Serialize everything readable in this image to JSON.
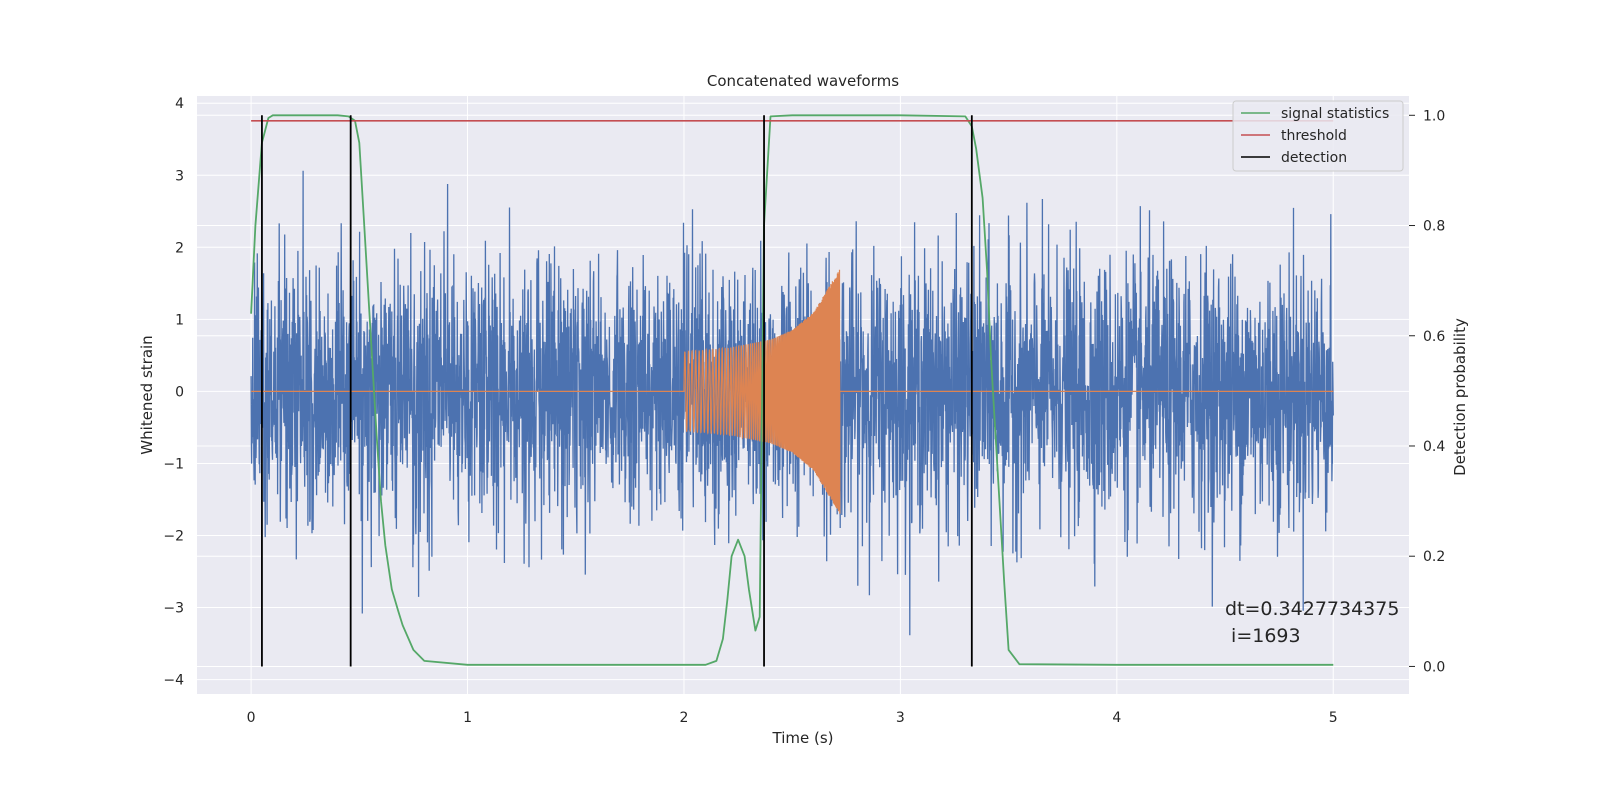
{
  "chart_data": {
    "type": "line",
    "title": "Concatenated waveforms",
    "xlabel": "Time (s)",
    "ylabel": "Whitened strain",
    "y2label": "Detection probability",
    "xlim": [
      -0.25,
      5.35
    ],
    "ylim": [
      -4.2,
      4.1
    ],
    "y2lim": [
      -0.05,
      1.035
    ],
    "xticks": [
      0,
      1,
      2,
      3,
      4,
      5
    ],
    "xtick_labels": [
      "0",
      "1",
      "2",
      "3",
      "4",
      "5"
    ],
    "yticks": [
      -4,
      -3,
      -2,
      -1,
      0,
      1,
      2,
      3,
      4
    ],
    "ytick_labels": [
      "−4",
      "−3",
      "−2",
      "−1",
      "0",
      "1",
      "2",
      "3",
      "4"
    ],
    "y2ticks": [
      0.0,
      0.2,
      0.4,
      0.6,
      0.8,
      1.0
    ],
    "y2tick_labels": [
      "0.0",
      "0.2",
      "0.4",
      "0.6",
      "0.8",
      "1.0"
    ],
    "grid": true,
    "legend_position": "top-right",
    "legend": [
      {
        "label": "signal statistics",
        "color": "#55a868"
      },
      {
        "label": "threshold",
        "color": "#c44e52"
      },
      {
        "label": "detection",
        "color": "#000000"
      }
    ],
    "series": [
      {
        "kind": "whitened-strain",
        "color": "#4c72b0",
        "x_range": [
          0,
          5
        ],
        "amplitude_range": [
          -3.6,
          3.7
        ]
      },
      {
        "kind": "injected-waveform",
        "color": "#dd8452",
        "x_range": [
          2.0,
          2.72
        ],
        "envelope": [
          [
            2.0,
            0.55
          ],
          [
            2.2,
            0.6
          ],
          [
            2.4,
            0.72
          ],
          [
            2.5,
            0.85
          ],
          [
            2.6,
            1.1
          ],
          [
            2.66,
            1.4
          ],
          [
            2.72,
            1.7
          ]
        ]
      },
      {
        "name": "signal statistics",
        "color": "#55a868",
        "axis": "y2",
        "x": [
          0.0,
          0.02,
          0.05,
          0.08,
          0.1,
          0.2,
          0.3,
          0.4,
          0.45,
          0.48,
          0.5,
          0.52,
          0.55,
          0.58,
          0.6,
          0.62,
          0.65,
          0.68,
          0.7,
          0.75,
          0.8,
          1.0,
          1.5,
          2.0,
          2.1,
          2.15,
          2.18,
          2.2,
          2.22,
          2.25,
          2.28,
          2.3,
          2.33,
          2.35,
          2.37,
          2.4,
          2.5,
          3.0,
          3.3,
          3.33,
          3.35,
          3.38,
          3.4,
          3.42,
          3.45,
          3.48,
          3.5,
          3.55,
          4.0,
          5.0
        ],
        "y": [
          0.64,
          0.8,
          0.95,
          0.995,
          1.0,
          1.0,
          1.0,
          1.0,
          0.998,
          0.99,
          0.95,
          0.82,
          0.62,
          0.42,
          0.3,
          0.22,
          0.14,
          0.1,
          0.075,
          0.03,
          0.01,
          0.003,
          0.003,
          0.003,
          0.003,
          0.01,
          0.05,
          0.12,
          0.2,
          0.23,
          0.2,
          0.14,
          0.065,
          0.09,
          0.8,
          0.998,
          1.0,
          1.0,
          0.998,
          0.98,
          0.94,
          0.85,
          0.72,
          0.55,
          0.35,
          0.15,
          0.03,
          0.004,
          0.003,
          0.003
        ]
      },
      {
        "name": "threshold",
        "color": "#c44e52",
        "axis": "y2",
        "x": [
          0,
          5
        ],
        "y": [
          0.99,
          0.99
        ]
      },
      {
        "name": "detection",
        "color": "#000000",
        "axis": "y2",
        "type": "vlines",
        "x": [
          0.05,
          0.46,
          2.37,
          3.33
        ],
        "ymin": 0.0,
        "ymax": 1.0
      }
    ],
    "annotation": {
      "line1": "dt=0.3427734375",
      "line2": " i=1693",
      "x": 4.5,
      "y": -3.0
    }
  }
}
